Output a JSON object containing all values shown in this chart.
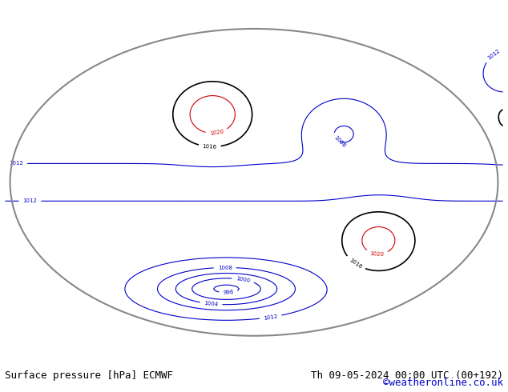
{
  "title_left": "Surface pressure [hPa] ECMWF",
  "title_right": "Th 09-05-2024 00:00 UTC (00+192)",
  "credit": "©weatheronline.co.uk",
  "bg_color": "#ffffff",
  "map_bg": "#f0f0f0",
  "land_color": "#90ee90",
  "ocean_color": "#ffffff",
  "contour_interval": 4,
  "p_min": 960,
  "p_max": 1036,
  "label_color_blue": "#0000cc",
  "label_color_red": "#cc0000",
  "label_color_black": "#000000",
  "contour_color_blue": "#0000cc",
  "contour_color_red": "#cc0000",
  "contour_color_black": "#000000",
  "footer_fontsize": 9,
  "credit_color": "#0000cc"
}
